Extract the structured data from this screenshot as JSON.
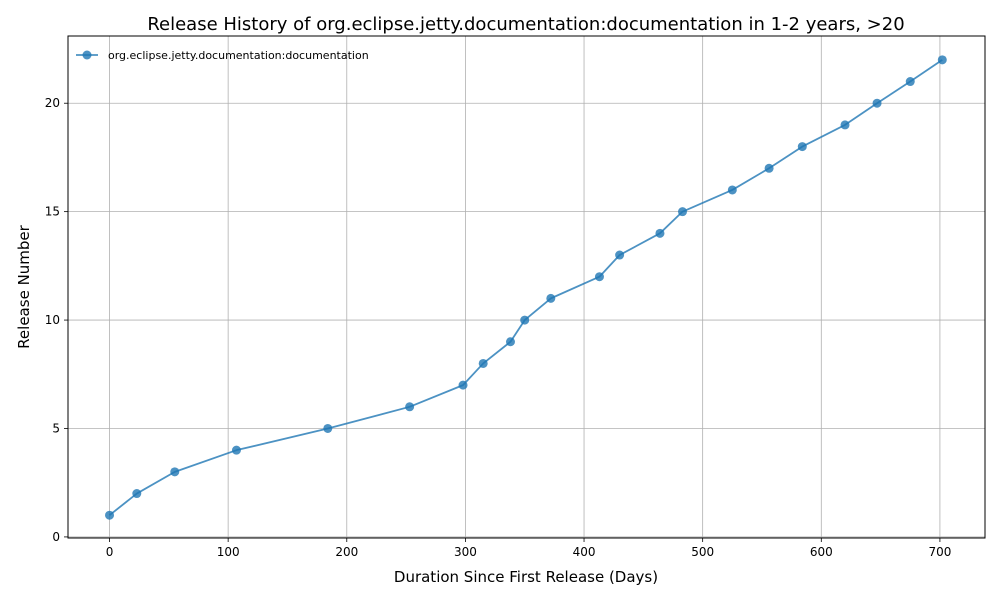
{
  "chart_data": {
    "type": "line",
    "title": "Release History of org.eclipse.jetty.documentation:documentation in 1-2 years, >20",
    "xlabel": "Duration Since First Release (Days)",
    "ylabel": "Release Number",
    "xlim": [
      -35,
      738
    ],
    "ylim": [
      -0.05,
      23.1
    ],
    "xticks": [
      0,
      100,
      200,
      300,
      400,
      500,
      600,
      700
    ],
    "yticks": [
      0,
      5,
      10,
      15,
      20
    ],
    "grid": true,
    "legend_position": "top-left",
    "series": [
      {
        "name": "org.eclipse.jetty.documentation:documentation",
        "color": "#1f77b4",
        "marker": "circle",
        "x": [
          0,
          23,
          55,
          107,
          184,
          253,
          298,
          315,
          338,
          350,
          372,
          413,
          430,
          464,
          483,
          525,
          556,
          584,
          620,
          647,
          675,
          702
        ],
        "y": [
          1,
          2,
          3,
          4,
          5,
          6,
          7,
          8,
          9,
          10,
          11,
          12,
          13,
          14,
          15,
          16,
          17,
          18,
          19,
          20,
          21,
          22
        ]
      }
    ]
  }
}
